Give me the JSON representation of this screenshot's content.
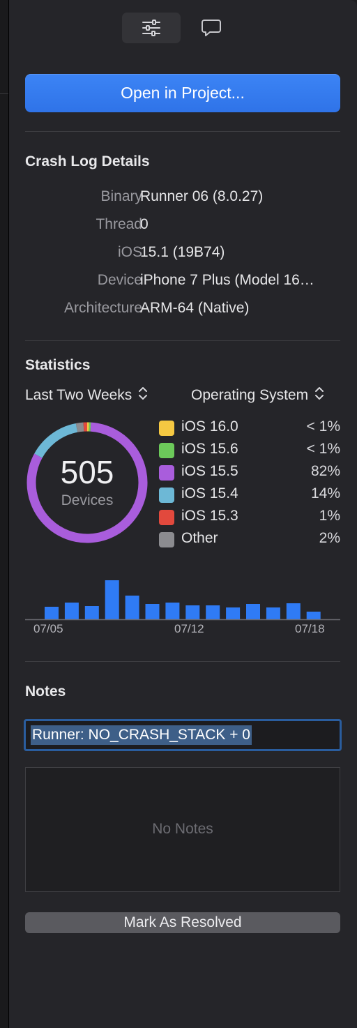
{
  "toolbar": {
    "inspector_icon": "sliders-icon",
    "comment_icon": "speech-bubble-icon"
  },
  "open_button": {
    "label": "Open in Project..."
  },
  "crash_details": {
    "title": "Crash Log Details",
    "rows": [
      {
        "key": "Binary",
        "value": "Runner 06 (8.0.27)"
      },
      {
        "key": "Thread",
        "value": "0"
      },
      {
        "key": "iOS",
        "value": "15.1 (19B74)"
      },
      {
        "key": "Device",
        "value": "iPhone 7 Plus (Model 16…"
      },
      {
        "key": "Architecture",
        "value": "ARM-64 (Native)"
      }
    ]
  },
  "statistics": {
    "title": "Statistics",
    "range_selector": "Last Two Weeks",
    "group_selector": "Operating System",
    "total": "505",
    "total_label": "Devices",
    "legend": [
      {
        "name": "iOS 16.0",
        "pct": "< 1%",
        "color": "#f5c842",
        "share": 0.5
      },
      {
        "name": "iOS 15.6",
        "pct": "< 1%",
        "color": "#6cc95a",
        "share": 0.5
      },
      {
        "name": "iOS 15.5",
        "pct": "82%",
        "color": "#a95ddc",
        "share": 82
      },
      {
        "name": "iOS 15.4",
        "pct": "14%",
        "color": "#6db8d6",
        "share": 14
      },
      {
        "name": "iOS 15.3",
        "pct": "1%",
        "color": "#e2493d",
        "share": 1
      },
      {
        "name": "Other",
        "pct": "2%",
        "color": "#8c8c90",
        "share": 2
      }
    ]
  },
  "chart_data": {
    "type": "bar",
    "title": "",
    "xlabel": "",
    "ylabel": "",
    "tick_labels": [
      "07/05",
      "07/12",
      "07/18"
    ],
    "values": [
      18,
      24,
      19,
      56,
      34,
      22,
      24,
      20,
      20,
      17,
      22,
      17,
      23,
      11
    ],
    "color": "#2f7bf5"
  },
  "notes": {
    "title": "Notes",
    "title_field_value": "Runner: NO_CRASH_STACK + 0",
    "empty_text": "No Notes",
    "resolve_label": "Mark As Resolved"
  }
}
